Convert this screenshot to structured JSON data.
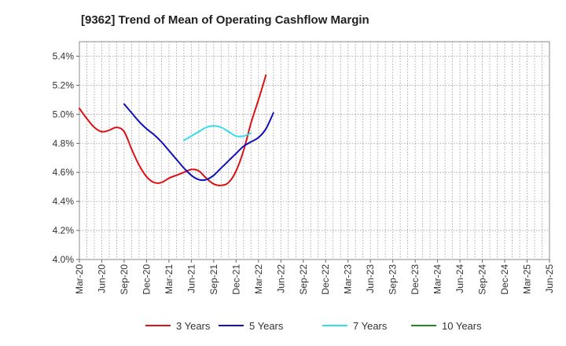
{
  "chart_data": {
    "type": "line",
    "title": "[9362]  Trend of Mean of Operating Cashflow Margin",
    "x_tick_labels": [
      "Mar-20",
      "Jun-20",
      "Sep-20",
      "Dec-20",
      "Mar-21",
      "Jun-21",
      "Sep-21",
      "Dec-21",
      "Mar-22",
      "Jun-22",
      "Sep-22",
      "Dec-22",
      "Mar-23",
      "Jun-23",
      "Sep-23",
      "Dec-23",
      "Mar-24",
      "Jun-24",
      "Sep-24",
      "Dec-24",
      "Mar-25",
      "Jun-25"
    ],
    "y_tick_labels": [
      "4.0%",
      "4.2%",
      "4.4%",
      "4.6%",
      "4.8%",
      "5.0%",
      "5.2%",
      "5.4%"
    ],
    "ylim": [
      4.0,
      5.5
    ],
    "y_unit": "%",
    "grid": true,
    "legend_position": "bottom",
    "series": [
      {
        "name": "3 Years",
        "color": "#dd1111",
        "start_index": 0,
        "values": [
          5.04,
          4.97,
          4.91,
          4.88,
          4.89,
          4.91,
          4.88,
          4.76,
          4.65,
          4.57,
          4.53,
          4.53,
          4.56,
          4.58,
          4.6,
          4.62,
          4.61,
          4.56,
          4.52,
          4.51,
          4.53,
          4.61,
          4.75,
          4.94,
          5.1,
          5.27
        ]
      },
      {
        "name": "5 Years",
        "color": "#1111bb",
        "start_index": 6,
        "values": [
          5.07,
          5.01,
          4.95,
          4.9,
          4.86,
          4.81,
          4.75,
          4.69,
          4.63,
          4.58,
          4.55,
          4.55,
          4.58,
          4.63,
          4.68,
          4.73,
          4.78,
          4.81,
          4.84,
          4.9,
          5.01
        ]
      },
      {
        "name": "7 Years",
        "color": "#33ddee",
        "start_index": 14,
        "values": [
          4.82,
          4.85,
          4.88,
          4.91,
          4.92,
          4.91,
          4.88,
          4.85,
          4.85,
          4.87
        ]
      },
      {
        "name": "10 Years",
        "color": "#228822",
        "start_index": 0,
        "values": []
      }
    ]
  }
}
